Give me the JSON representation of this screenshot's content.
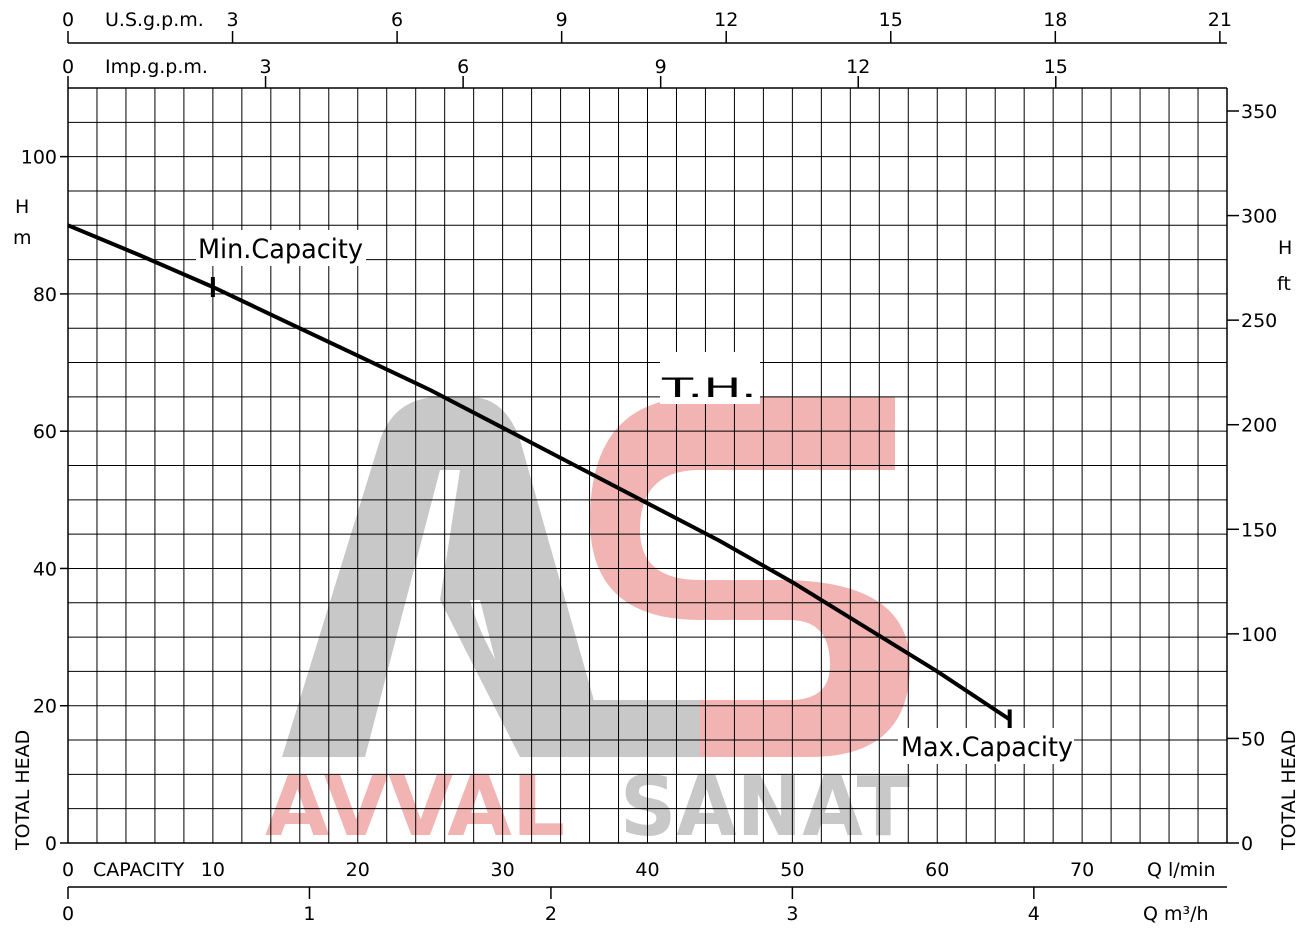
{
  "chart_data": {
    "type": "line",
    "series": [
      {
        "name": "T.H.",
        "x": [
          0,
          5,
          10,
          15,
          20,
          25,
          30,
          35,
          40,
          45,
          50,
          55,
          60,
          65
        ],
        "values": [
          90,
          85.6,
          81,
          76,
          71,
          66,
          60.5,
          55,
          49.5,
          44,
          38,
          31.5,
          25,
          18
        ]
      }
    ],
    "markers": [
      {
        "label": "Min.Capacity",
        "x": 10,
        "y": 81
      },
      {
        "label": "Max.Capacity",
        "x": 65,
        "y": 18
      }
    ],
    "x_axes": {
      "primary": {
        "label": "Q l/min",
        "range": [
          0,
          80
        ],
        "ticks": [
          "0",
          "10",
          "20",
          "30",
          "40",
          "50",
          "60",
          "70"
        ],
        "name": "CAPACITY"
      },
      "m3h": {
        "label": "Q m³/h",
        "range": [
          0,
          4.8
        ],
        "ticks": [
          "0",
          "1",
          "2",
          "3",
          "4"
        ]
      },
      "usgpm": {
        "label": "U.S.g.p.m.",
        "range": [
          0,
          21.13
        ],
        "ticks": [
          "0",
          "3",
          "6",
          "9",
          "12",
          "15",
          "18",
          "21"
        ]
      },
      "impgpm": {
        "label": "Imp.g.p.m.",
        "range": [
          0,
          17.6
        ],
        "ticks": [
          "0",
          "3",
          "6",
          "9",
          "12",
          "15"
        ]
      }
    },
    "y_axes": {
      "left": {
        "unit_h": "H",
        "unit": "m",
        "range": [
          0,
          110
        ],
        "ticks": [
          "0",
          "20",
          "40",
          "60",
          "80",
          "100"
        ],
        "name": "TOTAL HEAD"
      },
      "right": {
        "unit_h": "H",
        "unit": "ft",
        "range": [
          0,
          361
        ],
        "ticks": [
          "0",
          "50",
          "100",
          "150",
          "200",
          "250",
          "300",
          "350"
        ],
        "name": "TOTAL HEAD"
      }
    },
    "grid": true
  },
  "watermark": {
    "text_left": "AVVAL",
    "text_right": "SANAT",
    "color_gray": "#c8c8c8",
    "color_red": "#f2b3b3"
  }
}
